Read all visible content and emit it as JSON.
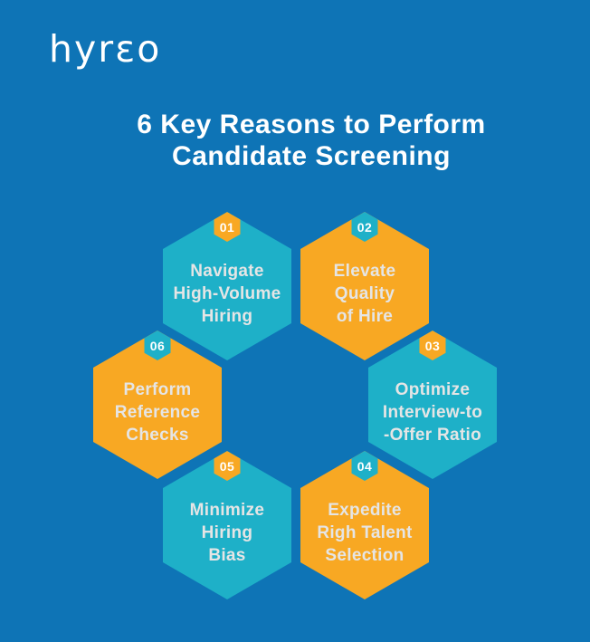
{
  "colors": {
    "background": "#0E74B6",
    "teal": "#1EB0C8",
    "yellow": "#F8A823",
    "hex_label_text": "#E5E5E5",
    "title_text": "#FFFFFF",
    "badge_text": "#FFFFFF"
  },
  "logo": {
    "text": "hyrɛo"
  },
  "title": {
    "line1": "6 Key Reasons to Perform",
    "line2": "Candidate Screening"
  },
  "hexagons": [
    {
      "number": "01",
      "scheme": "teal",
      "badge_scheme": "yellow",
      "line1": "Navigate",
      "line2": "High-Volume",
      "line3": "Hiring"
    },
    {
      "number": "02",
      "scheme": "yellow",
      "badge_scheme": "teal",
      "line1": "Elevate",
      "line2": "Quality",
      "line3": "of Hire"
    },
    {
      "number": "03",
      "scheme": "teal",
      "badge_scheme": "yellow",
      "line1": "Optimize",
      "line2": "Interview-to",
      "line3": "-Offer Ratio"
    },
    {
      "number": "04",
      "scheme": "yellow",
      "badge_scheme": "teal",
      "line1": "Expedite",
      "line2": "Righ Talent",
      "line3": "Selection"
    },
    {
      "number": "05",
      "scheme": "teal",
      "badge_scheme": "yellow",
      "line1": "Minimize",
      "line2": "Hiring",
      "line3": "Bias"
    },
    {
      "number": "06",
      "scheme": "yellow",
      "badge_scheme": "teal",
      "line1": "Perform",
      "line2": "Reference",
      "line3": "Checks"
    }
  ]
}
